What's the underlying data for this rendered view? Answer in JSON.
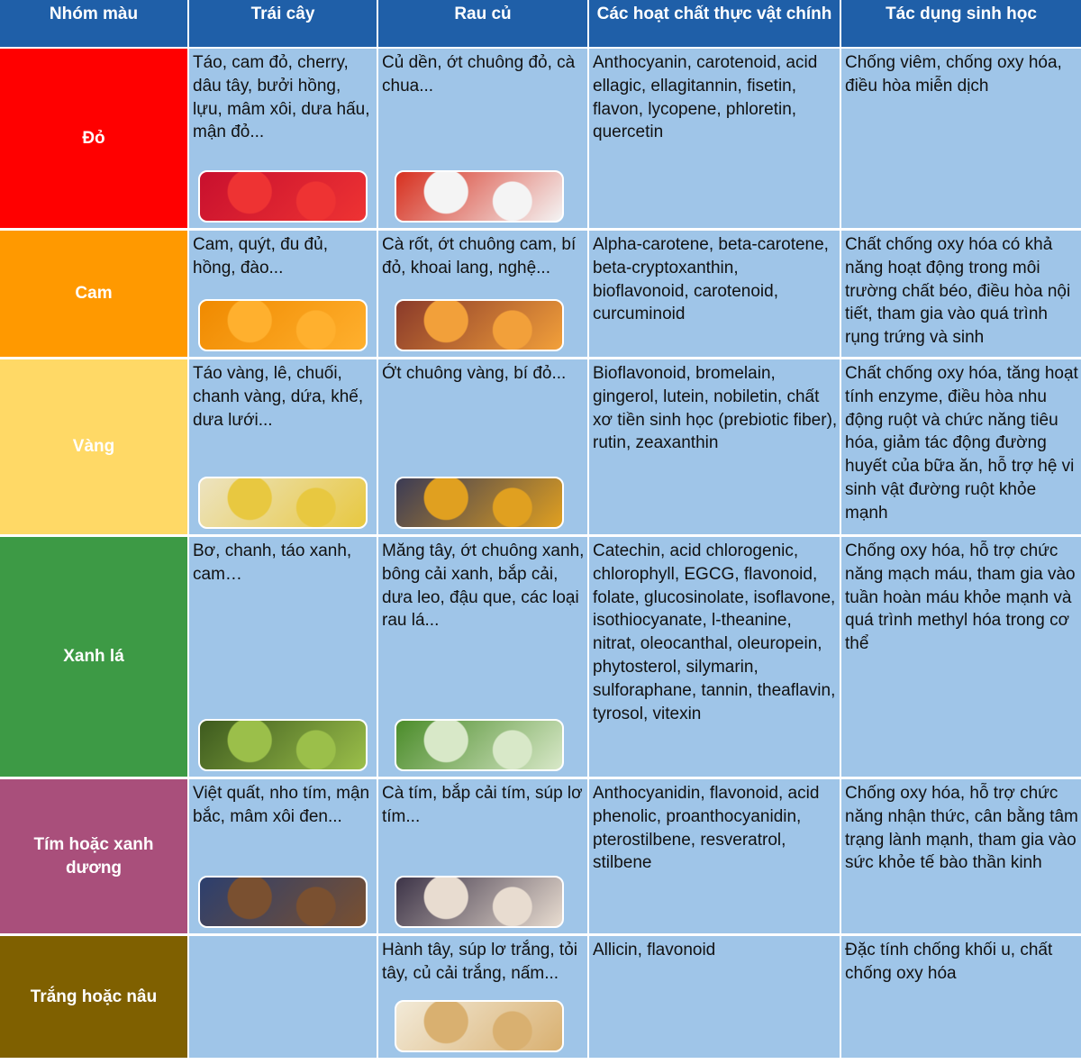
{
  "header": [
    "Nhóm màu",
    "Trái cây",
    "Rau củ",
    "Các hoạt chất thực vật chính",
    "Tác dụng sinh học"
  ],
  "rows": [
    {
      "group": "Đỏ",
      "fruits": "Táo, cam đỏ, cherry, dâu tây, bưởi hồng, lựu, mâm xôi, dưa hấu, mận đỏ...",
      "vegetables": "Củ dền, ớt chuông đỏ, cà chua...",
      "compounds": "Anthocyanin, carotenoid, acid ellagic, ellagitannin, fisetin, flavon, lycopene, phloretin, quercetin",
      "effects": "Chống viêm, chống oxy hóa, điều hòa miễn dịch"
    },
    {
      "group": "Cam",
      "fruits": "Cam, quýt, đu đủ, hồng, đào...",
      "vegetables": "Cà rốt, ớt chuông cam, bí đỏ, khoai lang, nghệ...",
      "compounds": "Alpha-carotene, beta-carotene, beta-cryptoxanthin, bioflavonoid, carotenoid, curcuminoid",
      "effects": "Chất chống oxy hóa có khả năng hoạt động trong môi trường chất béo, điều hòa nội tiết, tham gia vào quá trình rụng trứng và sinh"
    },
    {
      "group": "Vàng",
      "fruits": "Táo vàng, lê, chuối, chanh vàng, dứa, khế, dưa lưới...",
      "vegetables": "Ớt chuông vàng, bí đỏ...",
      "compounds": "Bioflavonoid, bromelain, gingerol, lutein, nobiletin, chất xơ tiền sinh học (prebiotic fiber), rutin, zeaxanthin",
      "effects": "Chất chống oxy hóa, tăng hoạt tính enzyme, điều hòa nhu động ruột và chức năng tiêu hóa, giảm tác động đường huyết của bữa ăn, hỗ trợ hệ vi sinh vật đường ruột khỏe mạnh"
    },
    {
      "group": "Xanh lá",
      "fruits": "Bơ, chanh, táo xanh, cam…",
      "vegetables": "Măng tây, ớt chuông xanh, bông cải xanh, bắp cải, dưa leo, đậu que, các loại rau lá...",
      "compounds": "Catechin, acid chlorogenic, chlorophyll, EGCG, flavonoid, folate, glucosinolate, isoflavone, isothiocyanate, l-theanine, nitrat, oleocanthal, oleuropein, phytosterol, silymarin, sulforaphane, tannin, theaflavin, tyrosol, vitexin",
      "effects": "Chống oxy hóa, hỗ trợ chức năng mạch máu, tham gia vào tuần hoàn máu khỏe mạnh và quá trình methyl hóa trong cơ thể"
    },
    {
      "group": "Tím hoặc xanh dương",
      "fruits": "Việt quất, nho tím, mận bắc, mâm xôi đen...",
      "vegetables": "Cà tím, bắp cải tím, súp lơ tím...",
      "compounds": "Anthocyanidin, flavonoid, acid phenolic, proanthocyanidin, pterostilbene, resveratrol, stilbene",
      "effects": "Chống oxy hóa, hỗ trợ chức năng nhận thức, cân bằng tâm trạng lành mạnh, tham gia vào sức khỏe tế bào thần kinh"
    },
    {
      "group": "Trắng hoặc nâu",
      "vegetables": "Hành tây, súp lơ trắng, tỏi tây, củ cải trắng, nấm...",
      "compounds": "Allicin, flavonoid",
      "effects": "Đặc tính chống khối u, chất chống oxy hóa"
    }
  ]
}
